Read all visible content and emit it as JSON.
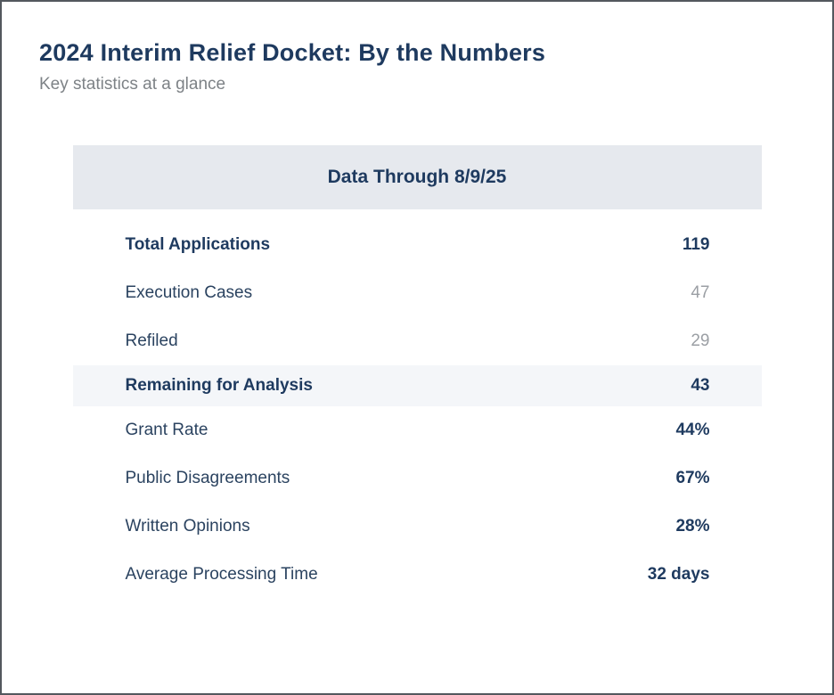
{
  "header": {
    "title": "2024 Interim Relief Docket: By the Numbers",
    "subtitle": "Key statistics at a glance"
  },
  "table": {
    "header": "Data Through 8/9/25",
    "rows": [
      {
        "label": "Total Applications",
        "value": "119",
        "label_bold": true,
        "value_style": "navy-bold",
        "highlight": false
      },
      {
        "label": "Execution Cases",
        "value": "47",
        "label_bold": false,
        "value_style": "gray",
        "highlight": false
      },
      {
        "label": "Refiled",
        "value": "29",
        "label_bold": false,
        "value_style": "gray",
        "highlight": false
      },
      {
        "label": "Remaining for Analysis",
        "value": "43",
        "label_bold": true,
        "value_style": "navy-bold",
        "highlight": true
      },
      {
        "label": "Grant Rate",
        "value": "44%",
        "label_bold": false,
        "value_style": "navy-bold",
        "highlight": false
      },
      {
        "label": "Public Disagreements",
        "value": "67%",
        "label_bold": false,
        "value_style": "navy-bold",
        "highlight": false
      },
      {
        "label": "Written Opinions",
        "value": "28%",
        "label_bold": false,
        "value_style": "navy-bold",
        "highlight": false
      },
      {
        "label": "Average Processing Time",
        "value": "32 days",
        "label_bold": false,
        "value_style": "navy-bold",
        "highlight": false
      }
    ]
  },
  "colors": {
    "accent_navy": "#1e3a5f",
    "label_regular": "#2b4360",
    "value_gray": "#9b9fa4",
    "subtitle_gray": "#7d8286",
    "header_band_bg": "#e6e9ee",
    "highlight_row_bg": "#f4f6f9",
    "page_border": "#53585e",
    "page_bg": "#ffffff"
  },
  "chart_data": {
    "type": "table",
    "title": "2024 Interim Relief Docket: By the Numbers",
    "subtitle": "Key statistics at a glance",
    "column_header": "Data Through 8/9/25",
    "categories": [
      "Total Applications",
      "Execution Cases",
      "Refiled",
      "Remaining for Analysis",
      "Grant Rate",
      "Public Disagreements",
      "Written Opinions",
      "Average Processing Time"
    ],
    "values": [
      "119",
      "47",
      "29",
      "43",
      "44%",
      "67%",
      "28%",
      "32 days"
    ]
  }
}
